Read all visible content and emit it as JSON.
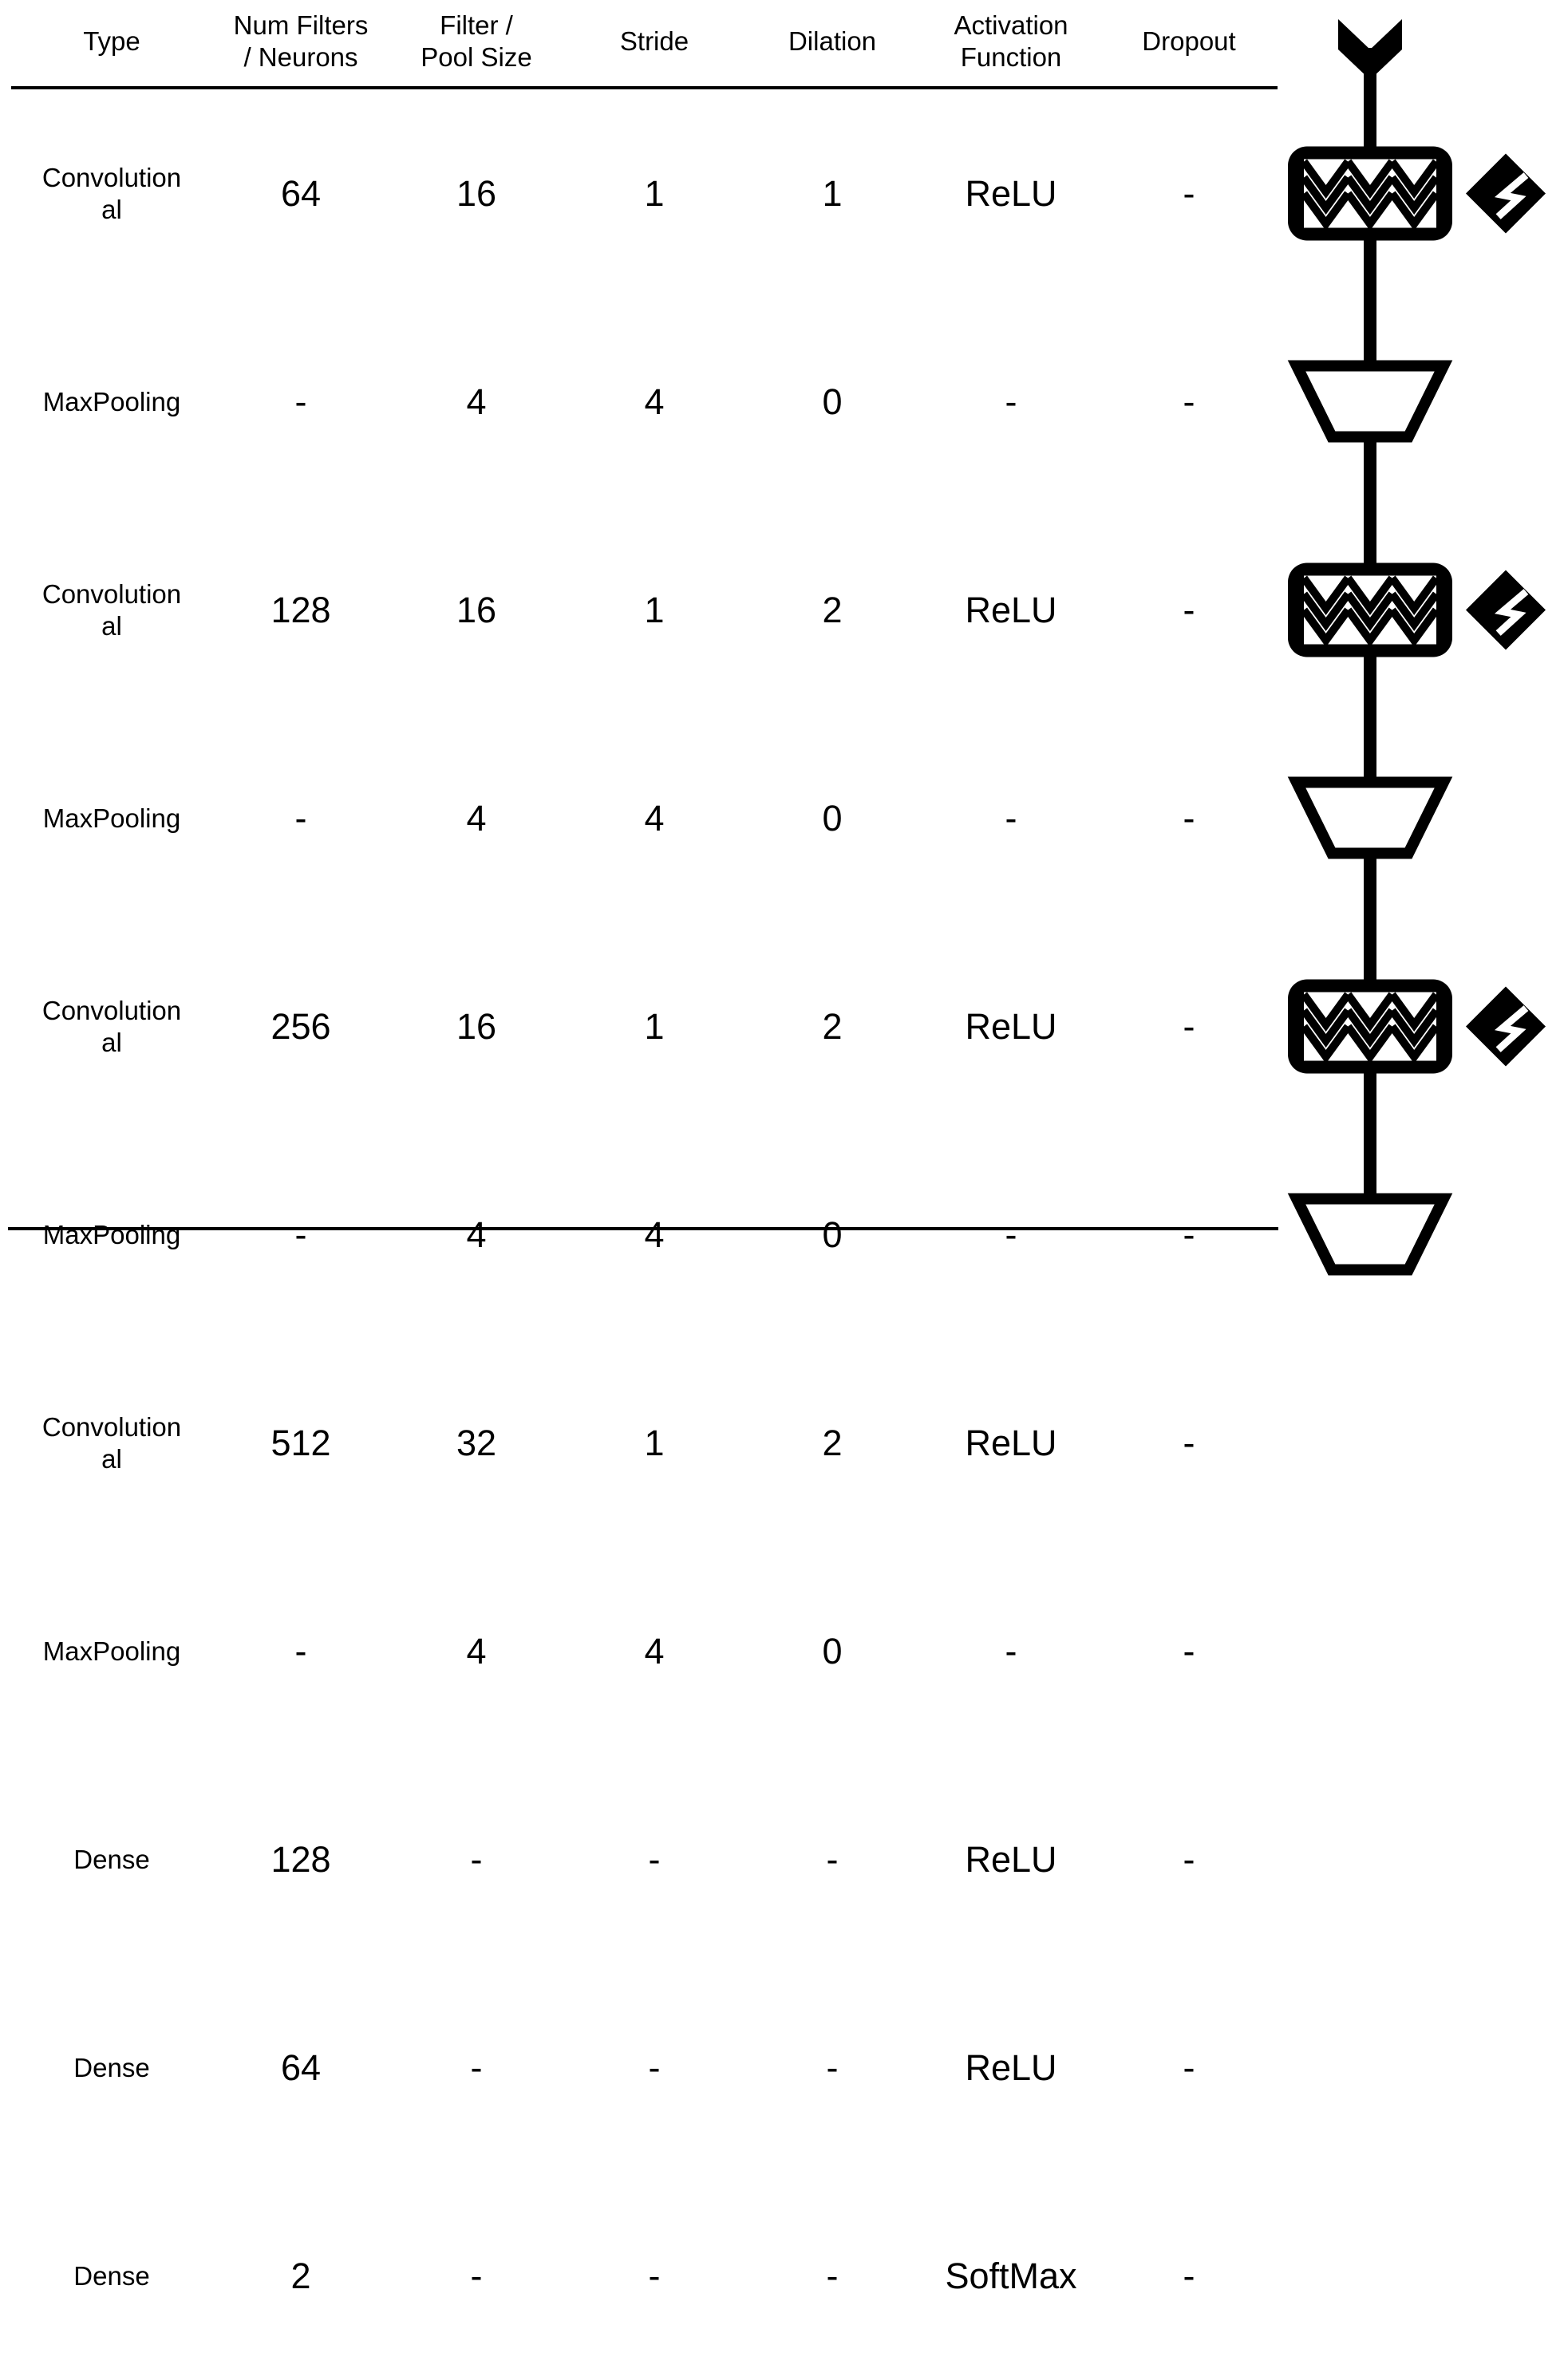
{
  "table": {
    "headers": [
      {
        "line1": "Type",
        "line2": ""
      },
      {
        "line1": "Num Filters",
        "line2": "/ Neurons"
      },
      {
        "line1": "Filter /",
        "line2": "Pool Size"
      },
      {
        "line1": "Stride",
        "line2": ""
      },
      {
        "line1": "Dilation",
        "line2": ""
      },
      {
        "line1": "Activation",
        "line2": "Function"
      },
      {
        "line1": "Dropout",
        "line2": ""
      }
    ],
    "rows": [
      {
        "type1": "Convolution",
        "type2": "al",
        "filters": "64",
        "size": "16",
        "stride": "1",
        "dilation": "1",
        "activation": "ReLU",
        "dropout": "-",
        "glyph": "conv"
      },
      {
        "type1": "MaxPooling",
        "type2": "",
        "filters": "-",
        "size": "4",
        "stride": "4",
        "dilation": "0",
        "activation": "-",
        "dropout": "-",
        "glyph": "pool"
      },
      {
        "type1": "Convolution",
        "type2": "al",
        "filters": "128",
        "size": "16",
        "stride": "1",
        "dilation": "2",
        "activation": "ReLU",
        "dropout": "-",
        "glyph": "conv"
      },
      {
        "type1": "MaxPooling",
        "type2": "",
        "filters": "-",
        "size": "4",
        "stride": "4",
        "dilation": "0",
        "activation": "-",
        "dropout": "-",
        "glyph": "pool"
      },
      {
        "type1": "Convolution",
        "type2": "al",
        "filters": "256",
        "size": "16",
        "stride": "1",
        "dilation": "2",
        "activation": "ReLU",
        "dropout": "-",
        "glyph": "conv"
      },
      {
        "type1": "MaxPooling",
        "type2": "",
        "filters": "-",
        "size": "4",
        "stride": "4",
        "dilation": "0",
        "activation": "-",
        "dropout": "-",
        "glyph": "pool"
      },
      {
        "type1": "Convolution",
        "type2": "al",
        "filters": "512",
        "size": "32",
        "stride": "1",
        "dilation": "2",
        "activation": "ReLU",
        "dropout": "-",
        "glyph": "conv"
      },
      {
        "type1": "MaxPooling",
        "type2": "",
        "filters": "-",
        "size": "4",
        "stride": "4",
        "dilation": "0",
        "activation": "-",
        "dropout": "-",
        "glyph": "pool"
      },
      {
        "type1": "Dense",
        "type2": "",
        "filters": "128",
        "size": "-",
        "stride": "-",
        "dilation": "-",
        "activation": "ReLU",
        "dropout": "-",
        "glyph": "dense"
      },
      {
        "type1": "Dense",
        "type2": "",
        "filters": "64",
        "size": "-",
        "stride": "-",
        "dilation": "-",
        "activation": "ReLU",
        "dropout": "-",
        "glyph": "dense"
      },
      {
        "type1": "Dense",
        "type2": "",
        "filters": "2",
        "size": "-",
        "stride": "-",
        "dilation": "-",
        "activation": "SoftMax",
        "dropout": "-",
        "glyph": "dense"
      }
    ]
  },
  "diagram": {
    "input_icon": "input-chevron-icon",
    "output_icons": [
      "output-open-circle-icon",
      "output-filled-circle-icon"
    ],
    "activation_icons": [
      "relu-diamond-icon",
      "softmax-diamond-icon"
    ],
    "ink_color": "#000000",
    "paper_color": "#ffffff"
  }
}
